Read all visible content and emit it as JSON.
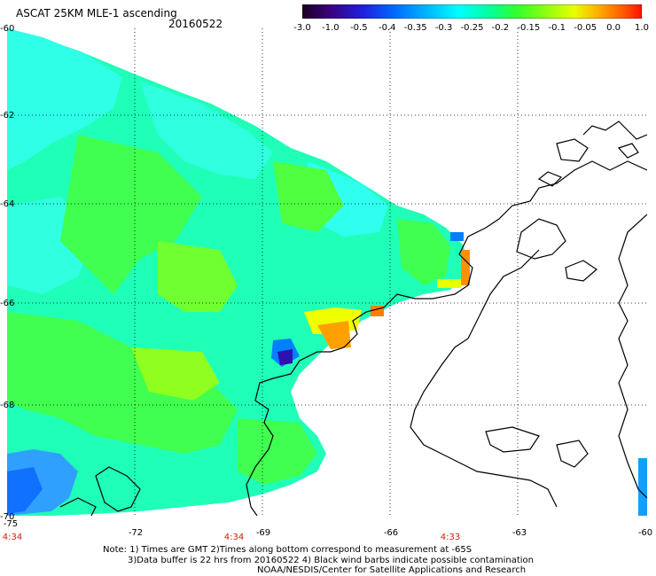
{
  "header": {
    "title": "ASCAT 25KM MLE-1 ascending",
    "date": "20160522"
  },
  "colorbar": {
    "ticks": [
      "-3.0",
      "-1.0",
      "-0.5",
      "-0.4",
      "-0.35",
      "-0.3",
      "-0.25",
      "-0.2",
      "-0.15",
      "-0.1",
      "-0.05",
      "0.0",
      "1.0"
    ],
    "colors": [
      "#200030",
      "#4000a0",
      "#0020ff",
      "#0080ff",
      "#00c8ff",
      "#00ffe0",
      "#00ff90",
      "#40ff40",
      "#a0ff20",
      "#f0ff00",
      "#ffb000",
      "#ff5000",
      "#ff0000"
    ]
  },
  "map": {
    "lat_labels": [
      "-60",
      "-62",
      "-64",
      "-66",
      "-68",
      "-70"
    ],
    "lon_labels": [
      "-75",
      "-72",
      "-69",
      "-66",
      "-63",
      "-60"
    ],
    "time_labels": [
      "4:34",
      "4:34",
      "4:33"
    ],
    "colors": {
      "land_outline": "#000000",
      "grid": "#000000",
      "background": "#ffffff"
    }
  },
  "footer": {
    "line1": "Note: 1) Times are GMT 2)Times along bottom correspond to measurement at -65S",
    "line2": "3)Data buffer is 22 hrs from 20160522 4) Black wind barbs indicate possible contamination",
    "line3": "NOAA/NESDIS/Center for Satellite Applications and Research"
  }
}
